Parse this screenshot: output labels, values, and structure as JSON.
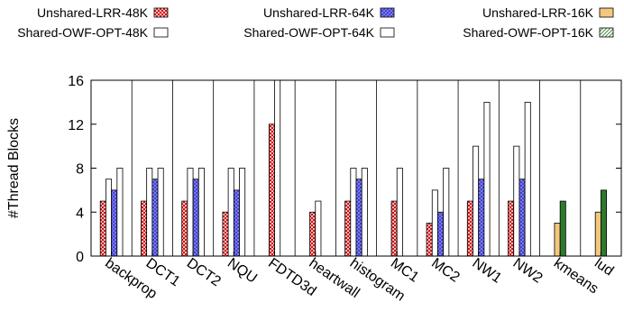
{
  "chart_data": {
    "type": "bar",
    "ylabel": "#Thread Blocks",
    "ylim": [
      0,
      16
    ],
    "yticks": [
      0,
      4,
      8,
      12,
      16
    ],
    "categories": [
      "backprop",
      "DCT1",
      "DCT2",
      "NQU",
      "FDTD3d",
      "heartwall",
      "histogram",
      "MC1",
      "MC2",
      "NW1",
      "NW2",
      "kmeans",
      "lud"
    ],
    "series": [
      {
        "name": "Unshared-LRR-48K",
        "color": "#cc0000",
        "pattern": "crosshatch-red",
        "values": [
          5,
          5,
          5,
          4,
          12,
          4,
          5,
          5,
          3,
          5,
          5,
          null,
          null
        ]
      },
      {
        "name": "Shared-OWF-OPT-48K",
        "color": "#ffffff",
        "pattern": "hollow",
        "values": [
          7,
          8,
          8,
          8,
          16,
          5,
          8,
          8,
          6,
          10,
          10,
          null,
          null
        ]
      },
      {
        "name": "Unshared-LRR-64K",
        "color": "#3333cc",
        "pattern": "crosshatch-blue",
        "values": [
          6,
          7,
          7,
          6,
          null,
          null,
          7,
          null,
          4,
          7,
          7,
          null,
          null
        ]
      },
      {
        "name": "Shared-OWF-OPT-64K",
        "color": "#ffffff",
        "pattern": "hollow",
        "values": [
          8,
          8,
          8,
          8,
          null,
          null,
          8,
          null,
          8,
          14,
          14,
          null,
          null
        ]
      },
      {
        "name": "Unshared-LRR-16K",
        "color": "#f5c77e",
        "pattern": "solid-light",
        "values": [
          null,
          null,
          null,
          null,
          null,
          null,
          null,
          null,
          null,
          null,
          null,
          3,
          4
        ]
      },
      {
        "name": "Shared-OWF-OPT-16K",
        "color": "#2d7a2d",
        "pattern": "solid-dark",
        "values": [
          null,
          null,
          null,
          null,
          null,
          null,
          null,
          null,
          null,
          null,
          null,
          5,
          6
        ]
      }
    ],
    "layout_series_per_group": [
      [
        0,
        1,
        2,
        3
      ],
      [
        0,
        1,
        2,
        3
      ],
      [
        0,
        1,
        2,
        3
      ],
      [
        0,
        1,
        2,
        3
      ],
      [
        0,
        1
      ],
      [
        0,
        1
      ],
      [
        0,
        1,
        2,
        3
      ],
      [
        0,
        1
      ],
      [
        0,
        1,
        2,
        3
      ],
      [
        0,
        1,
        2,
        3
      ],
      [
        0,
        1,
        2,
        3
      ],
      [
        4,
        5
      ],
      [
        4,
        5
      ]
    ],
    "legend": {
      "placement": "top",
      "rows": [
        [
          "Unshared-LRR-48K",
          "Unshared-LRR-64K",
          "Unshared-LRR-16K"
        ],
        [
          "Shared-OWF-OPT-48K",
          "Shared-OWF-OPT-64K",
          "Shared-OWF-OPT-16K"
        ]
      ]
    },
    "grid": {
      "vertical_lines": true
    }
  }
}
